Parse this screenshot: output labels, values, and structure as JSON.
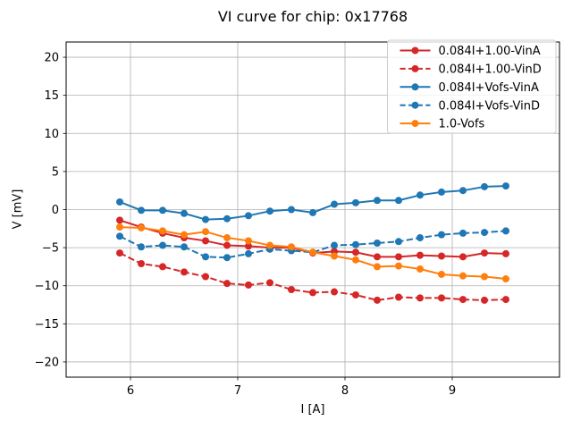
{
  "chart_data": {
    "type": "line",
    "title": "VI curve for chip: 0x17768",
    "xlabel": "I [A]",
    "ylabel": "V [mV]",
    "xlim": [
      5.4,
      10.0
    ],
    "ylim": [
      -22,
      22
    ],
    "xticks": [
      6,
      7,
      8,
      9
    ],
    "yticks": [
      -20,
      -15,
      -10,
      -5,
      0,
      5,
      10,
      15,
      20
    ],
    "grid": true,
    "grid_color": "#b0b0b0",
    "legend_position": "upper right",
    "x": [
      5.9,
      6.1,
      6.3,
      6.5,
      6.7,
      6.9,
      7.1,
      7.3,
      7.5,
      7.7,
      7.9,
      8.1,
      8.3,
      8.5,
      8.7,
      8.9,
      9.1,
      9.3,
      9.5
    ],
    "series": [
      {
        "name": "0.084I+1.00-VinA",
        "color": "#d62728",
        "style": "solid",
        "values": [
          -1.4,
          -2.3,
          -3.1,
          -3.7,
          -4.1,
          -4.7,
          -4.8,
          -5.0,
          -5.0,
          -5.7,
          -5.5,
          -5.6,
          -6.2,
          -6.2,
          -6.0,
          -6.1,
          -6.2,
          -5.7,
          -5.8
        ]
      },
      {
        "name": "0.084I+1.00-VinD",
        "color": "#d62728",
        "style": "dashed",
        "values": [
          -5.7,
          -7.1,
          -7.5,
          -8.2,
          -8.8,
          -9.7,
          -9.9,
          -9.6,
          -10.5,
          -10.9,
          -10.8,
          -11.2,
          -11.9,
          -11.5,
          -11.6,
          -11.6,
          -11.8,
          -11.9,
          -11.8
        ]
      },
      {
        "name": "0.084I+Vofs-VinA",
        "color": "#1f77b4",
        "style": "solid",
        "values": [
          1.0,
          -0.1,
          -0.1,
          -0.5,
          -1.3,
          -1.2,
          -0.8,
          -0.2,
          0.0,
          -0.4,
          0.7,
          0.9,
          1.2,
          1.2,
          1.9,
          2.3,
          2.5,
          3.0,
          3.1
        ]
      },
      {
        "name": "0.084I+Vofs-VinD",
        "color": "#1f77b4",
        "style": "dashed",
        "values": [
          -3.5,
          -4.9,
          -4.7,
          -4.9,
          -6.2,
          -6.3,
          -5.8,
          -5.2,
          -5.4,
          -5.6,
          -4.7,
          -4.6,
          -4.4,
          -4.2,
          -3.7,
          -3.3,
          -3.1,
          -3.0,
          -2.8
        ]
      },
      {
        "name": "1.0-Vofs",
        "color": "#ff7f0e",
        "style": "solid",
        "values": [
          -2.3,
          -2.4,
          -2.8,
          -3.3,
          -2.9,
          -3.7,
          -4.1,
          -4.7,
          -4.9,
          -5.6,
          -6.1,
          -6.6,
          -7.5,
          -7.4,
          -7.8,
          -8.5,
          -8.7,
          -8.8,
          -9.1
        ]
      }
    ]
  }
}
